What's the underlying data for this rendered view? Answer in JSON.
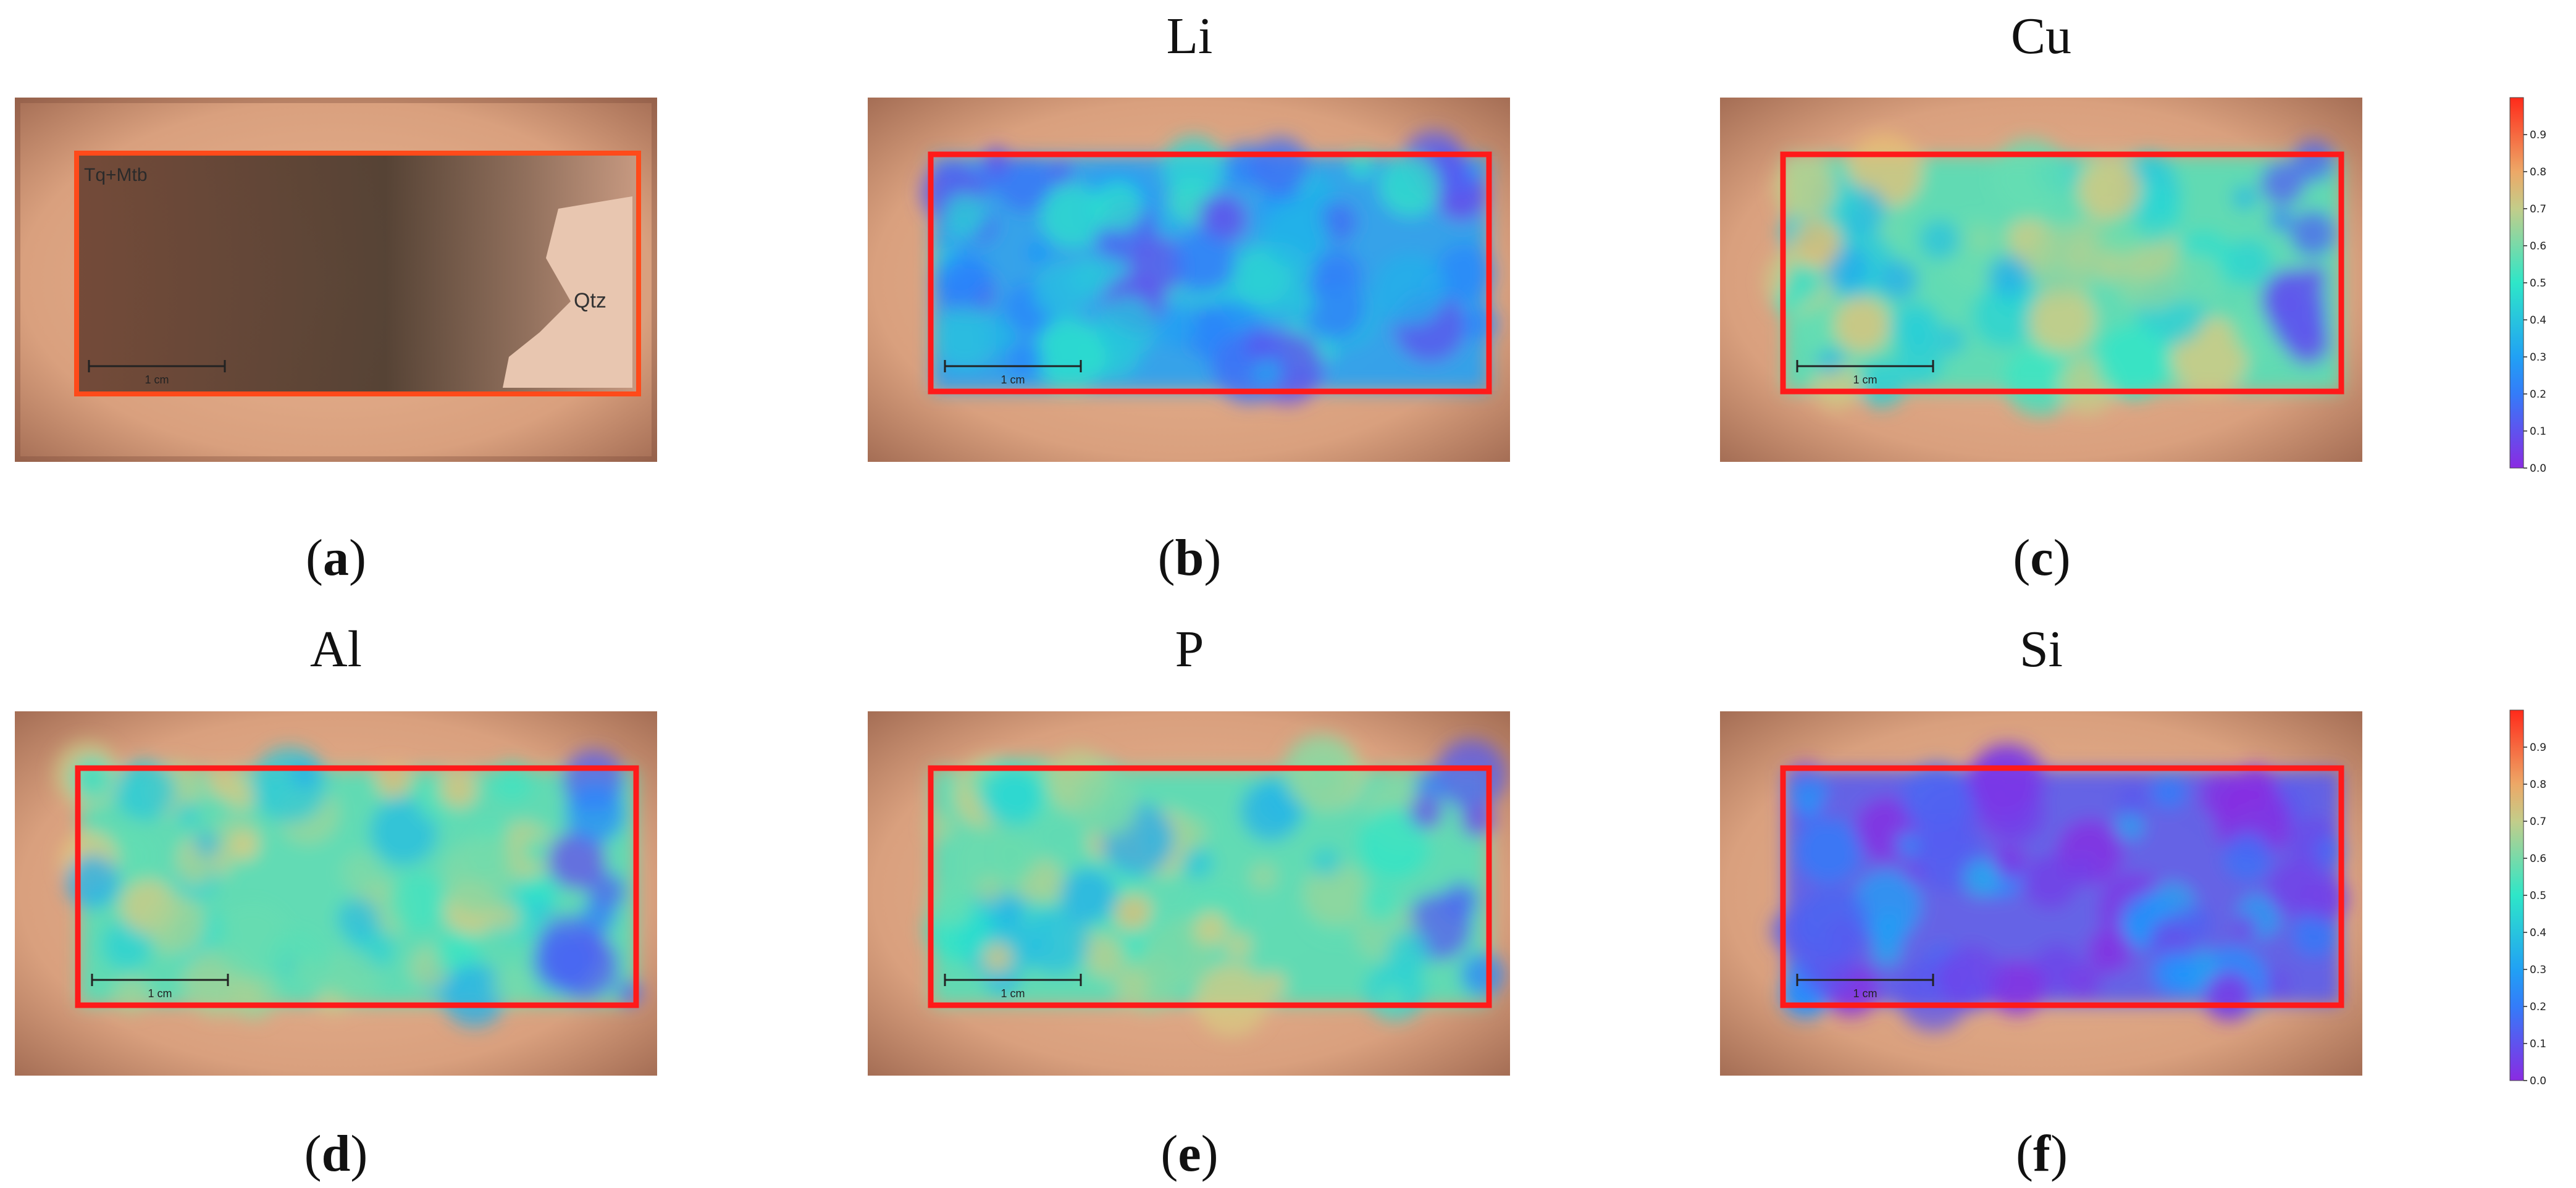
{
  "panels": [
    {
      "id": "a",
      "title": "",
      "label": "a",
      "annotations": [
        "Tq+Mtb",
        "Qtz"
      ],
      "scale_bar": "1 cm",
      "map": "photo"
    },
    {
      "id": "b",
      "title": "Li",
      "label": "b",
      "scale_bar": "1 cm",
      "map": "li"
    },
    {
      "id": "c",
      "title": "Cu",
      "label": "c",
      "scale_bar": "1 cm",
      "map": "cu"
    },
    {
      "id": "d",
      "title": "Al",
      "label": "d",
      "scale_bar": "1 cm",
      "map": "al"
    },
    {
      "id": "e",
      "title": "P",
      "label": "e",
      "scale_bar": "1 cm",
      "map": "p"
    },
    {
      "id": "f",
      "title": "Si",
      "label": "f",
      "scale_bar": "1 cm",
      "map": "si"
    }
  ],
  "colorbar": {
    "ticks": [
      "0.0",
      "0.1",
      "0.2",
      "0.3",
      "0.4",
      "0.5",
      "0.6",
      "0.7",
      "0.8",
      "0.9"
    ],
    "range": [
      0,
      1
    ],
    "colors": {
      "low": "#8a2be2",
      "mid_low": "#1e90ff",
      "mid": "#2ee6c8",
      "mid_high": "#e8c77a",
      "high": "#ff2a1a"
    }
  },
  "colors": {
    "roi_frame": "#ff1a1a",
    "background": "#ffffff"
  }
}
